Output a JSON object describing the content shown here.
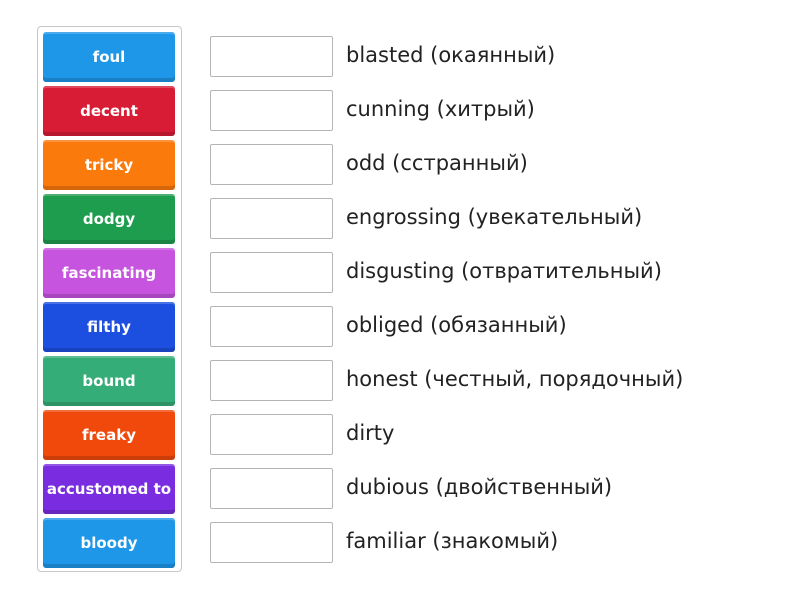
{
  "tiles": [
    {
      "label": "foul",
      "color": "#1e97e8"
    },
    {
      "label": "decent",
      "color": "#d81c35"
    },
    {
      "label": "tricky",
      "color": "#fb7a0c"
    },
    {
      "label": "dodgy",
      "color": "#1f9d4f"
    },
    {
      "label": "fascinating",
      "color": "#c654de"
    },
    {
      "label": "filthy",
      "color": "#1c4fe0"
    },
    {
      "label": "bound",
      "color": "#35ad78"
    },
    {
      "label": "freaky",
      "color": "#f0490b"
    },
    {
      "label": "accustomed to",
      "color": "#7a2de0"
    },
    {
      "label": "bloody",
      "color": "#1e97e8"
    }
  ],
  "clues": [
    "blasted (окаянный)",
    "cunning (хитрый)",
    "odd (сстранный)",
    "engrossing (увекательный)",
    "disgusting (отвратительный)",
    "obliged (обязанный)",
    "honest (честный, порядочный)",
    "dirty",
    "dubious (двойственный)",
    "familiar (знакомый)"
  ]
}
